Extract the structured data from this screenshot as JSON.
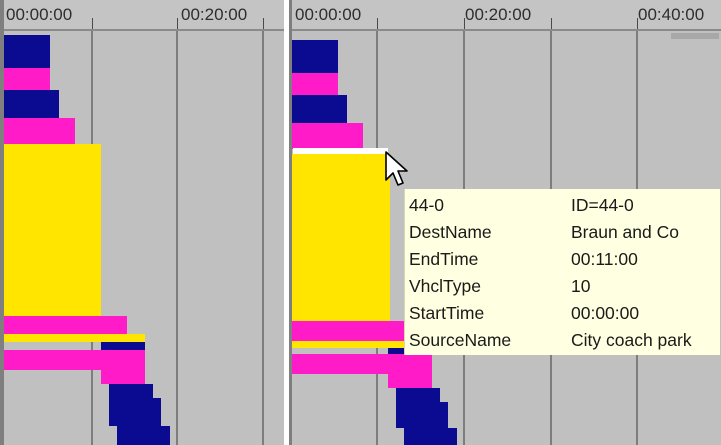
{
  "left_panel": {
    "ticks": [
      "00:00:00",
      "00:20:00"
    ]
  },
  "right_panel": {
    "ticks": [
      "00:00:00",
      "00:20:00",
      "00:40:00"
    ]
  },
  "colors": {
    "vehicle_type_a": "#0b0b92",
    "vehicle_type_b": "#ff1cc8",
    "selected_trip": "#ffe500",
    "tooltip_background": "#ffffe1"
  },
  "tooltip": {
    "rows": [
      {
        "key": "44-0",
        "value": "ID=44-0"
      },
      {
        "key": "DestName",
        "value": "Braun and Co"
      },
      {
        "key": "EndTime",
        "value": "00:11:00"
      },
      {
        "key": "VhclType",
        "value": "10"
      },
      {
        "key": "StartTime",
        "value": "00:00:00"
      },
      {
        "key": "SourceName",
        "value": "City coach park"
      }
    ]
  },
  "cursor": "arrow-pointer-icon"
}
